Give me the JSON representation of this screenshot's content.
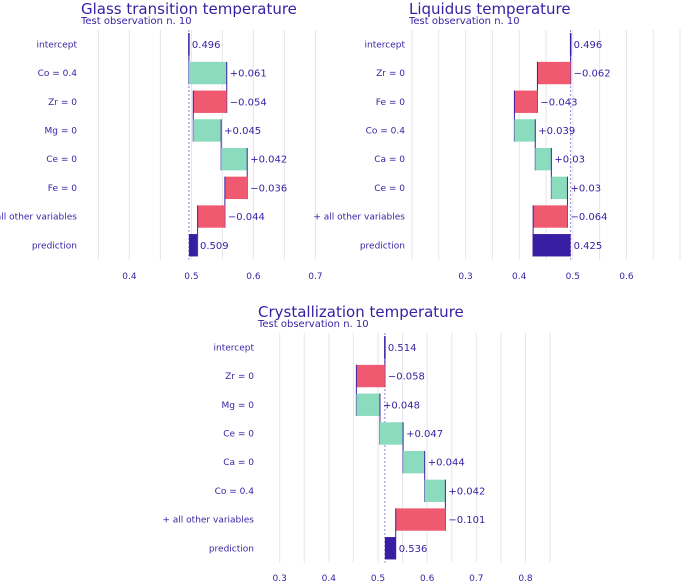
{
  "colors": {
    "positive": "#8bdcbe",
    "negative": "#f05a71",
    "baseline": "#371ea3",
    "prediction": "#371ea3",
    "text": "#371ea3"
  },
  "chart_data": [
    {
      "type": "bar",
      "subtype": "break-down",
      "title": "Glass transition temperature",
      "subtitle": "Test observation n. 10",
      "xlim": [
        0.33,
        0.73
      ],
      "ticks": [
        0.4,
        0.5,
        0.6,
        0.7
      ],
      "tick_labels": [
        "0.4",
        "0.5",
        "0.6",
        "0.7"
      ],
      "baseline": 0.496,
      "rows": [
        {
          "label": "intercept",
          "kind": "intercept",
          "value": 0.496,
          "text": "0.496"
        },
        {
          "label": "Co = 0.4",
          "kind": "contribution",
          "value": 0.061,
          "text": "+0.061"
        },
        {
          "label": "Zr = 0",
          "kind": "contribution",
          "value": -0.054,
          "text": "−0.054"
        },
        {
          "label": "Mg = 0",
          "kind": "contribution",
          "value": 0.045,
          "text": "+0.045"
        },
        {
          "label": "Ce = 0",
          "kind": "contribution",
          "value": 0.042,
          "text": "+0.042"
        },
        {
          "label": "Fe = 0",
          "kind": "contribution",
          "value": -0.036,
          "text": "−0.036"
        },
        {
          "label": "+ all other variables",
          "kind": "contribution",
          "value": -0.044,
          "text": "−0.044"
        },
        {
          "label": "prediction",
          "kind": "prediction",
          "value": 0.509,
          "text": "0.509"
        }
      ]
    },
    {
      "type": "bar",
      "subtype": "break-down",
      "title": "Liquidus temperature",
      "subtitle": "Test observation n. 10",
      "xlim": [
        0.2,
        0.7
      ],
      "ticks": [
        0.3,
        0.4,
        0.5,
        0.6
      ],
      "tick_labels": [
        "0.3",
        "0.4",
        "0.5",
        "0.6"
      ],
      "baseline": 0.496,
      "rows": [
        {
          "label": "intercept",
          "kind": "intercept",
          "value": 0.496,
          "text": "0.496"
        },
        {
          "label": "Zr = 0",
          "kind": "contribution",
          "value": -0.062,
          "text": "−0.062"
        },
        {
          "label": "Fe = 0",
          "kind": "contribution",
          "value": -0.043,
          "text": "−0.043"
        },
        {
          "label": "Co = 0.4",
          "kind": "contribution",
          "value": 0.039,
          "text": "+0.039"
        },
        {
          "label": "Ca = 0",
          "kind": "contribution",
          "value": 0.03,
          "text": "+0.03"
        },
        {
          "label": "Ce = 0",
          "kind": "contribution",
          "value": 0.03,
          "text": "+0.03"
        },
        {
          "label": "+ all other variables",
          "kind": "contribution",
          "value": -0.064,
          "text": "−0.064"
        },
        {
          "label": "prediction",
          "kind": "prediction",
          "value": 0.425,
          "text": "0.425"
        }
      ]
    },
    {
      "type": "bar",
      "subtype": "break-down",
      "title": "Crystallization temperature",
      "subtitle": "Test observation n. 10",
      "xlim": [
        0.26,
        0.86
      ],
      "ticks": [
        0.3,
        0.4,
        0.5,
        0.6,
        0.7,
        0.8
      ],
      "tick_labels": [
        "0.3",
        "0.4",
        "0.5",
        "0.6",
        "0.7",
        "0.8"
      ],
      "baseline": 0.514,
      "rows": [
        {
          "label": "intercept",
          "kind": "intercept",
          "value": 0.514,
          "text": "0.514"
        },
        {
          "label": "Zr = 0",
          "kind": "contribution",
          "value": -0.058,
          "text": "−0.058"
        },
        {
          "label": "Mg = 0",
          "kind": "contribution",
          "value": 0.048,
          "text": "+0.048"
        },
        {
          "label": "Ce = 0",
          "kind": "contribution",
          "value": 0.047,
          "text": "+0.047"
        },
        {
          "label": "Ca = 0",
          "kind": "contribution",
          "value": 0.044,
          "text": "+0.044"
        },
        {
          "label": "Co = 0.4",
          "kind": "contribution",
          "value": 0.042,
          "text": "+0.042"
        },
        {
          "label": "+ all other variables",
          "kind": "contribution",
          "value": -0.101,
          "text": "−0.101"
        },
        {
          "label": "prediction",
          "kind": "prediction",
          "value": 0.536,
          "text": "0.536"
        }
      ]
    }
  ]
}
